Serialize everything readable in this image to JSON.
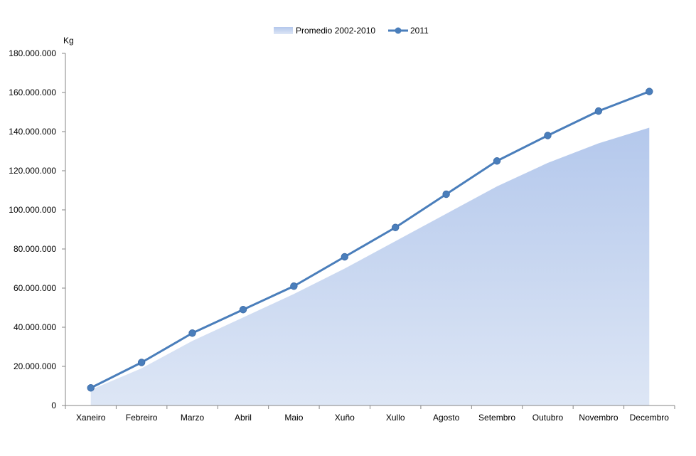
{
  "chart_data": {
    "type": "area",
    "ylabel": "Kg",
    "ylim": [
      0,
      180000000
    ],
    "ytick_values": [
      0,
      20000000,
      40000000,
      60000000,
      80000000,
      100000000,
      120000000,
      140000000,
      160000000,
      180000000
    ],
    "ytick_labels": [
      "0",
      "20.000.000",
      "40.000.000",
      "60.000.000",
      "80.000.000",
      "100.000.000",
      "120.000.000",
      "140.000.000",
      "160.000.000",
      "180.000.000"
    ],
    "categories": [
      "Xaneiro",
      "Febreiro",
      "Marzo",
      "Abril",
      "Maio",
      "Xuño",
      "Xullo",
      "Agosto",
      "Setembro",
      "Outubro",
      "Novembro",
      "Decembro"
    ],
    "legend_position": "top-center",
    "grid": false,
    "series": [
      {
        "name": "Promedio 2002-2010",
        "type": "area",
        "color": "#b4c8ec",
        "values": [
          8000000,
          19000000,
          33000000,
          45000000,
          57000000,
          70000000,
          84000000,
          98000000,
          112000000,
          124000000,
          134000000,
          142000000
        ]
      },
      {
        "name": "2011",
        "type": "line",
        "color": "#4a7ebb",
        "values": [
          9000000,
          22000000,
          37000000,
          49000000,
          61000000,
          76000000,
          91000000,
          108000000,
          125000000,
          138000000,
          150500000,
          160500000
        ]
      }
    ]
  }
}
